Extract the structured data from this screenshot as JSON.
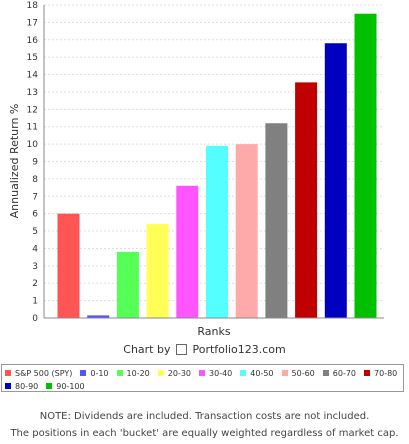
{
  "chart_data": {
    "type": "bar",
    "categories": [
      "S&P 500 (SPY)",
      "0-10",
      "10-20",
      "20-30",
      "30-40",
      "40-50",
      "50-60",
      "60-70",
      "70-80",
      "80-90",
      "90-100"
    ],
    "values": [
      6.0,
      0.15,
      3.8,
      5.4,
      7.6,
      9.9,
      10.0,
      11.2,
      13.55,
      15.8,
      17.5
    ],
    "colors": [
      "#ff5555",
      "#5555ff",
      "#55ff55",
      "#ffff55",
      "#ff55ff",
      "#55ffff",
      "#ffaaaa",
      "#808080",
      "#c00000",
      "#0000c0",
      "#00c000"
    ],
    "xlabel": "Ranks",
    "ylabel": "Annualized Return %",
    "ylim": [
      0,
      18
    ],
    "yticks": [
      "0",
      "1",
      "2",
      "3",
      "4",
      "5",
      "6",
      "7",
      "8",
      "9",
      "10",
      "11",
      "12",
      "13",
      "14",
      "15",
      "16",
      "17",
      "18"
    ],
    "grid": true,
    "legend": "bottom"
  },
  "credit": {
    "prefix": "Chart by",
    "brand": "Portfolio123.com"
  },
  "notes": [
    "NOTE: Dividends are included. Transaction costs are not included.",
    "The positions in each 'bucket' are equally weighted regardless of market cap."
  ]
}
